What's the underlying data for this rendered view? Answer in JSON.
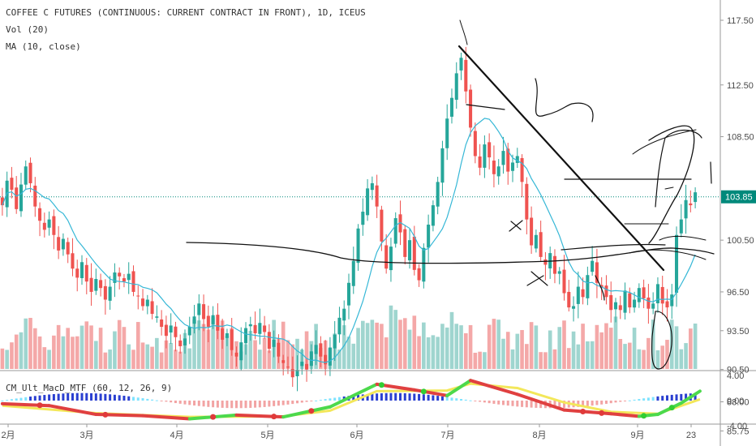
{
  "legend": {
    "symbol": "COFFEE C FUTURES (CONTINUOUS: CURRENT CONTRACT IN FRONT), 1D, ICEUS",
    "vol": "Vol (20)",
    "ma": "MA (10, close)",
    "macd": "CM_Ult_MacD_MTF (60, 12, 26, 9)"
  },
  "colors": {
    "up": "#26a69a",
    "down": "#ef5350",
    "vol_up": "#9fd5cf",
    "vol_down": "#f4a8a8",
    "ma": "#35b7d6",
    "price_line": "#00897b",
    "drawing": "#111111"
  },
  "chart_data": [
    {
      "type": "candlestick",
      "title": "COFFEE C FUTURES (CONTINUOUS: CURRENT CONTRACT IN FRONT), 1D, ICEUS",
      "y_ticks": [
        "117.50",
        "112.50",
        "108.50",
        "100.50",
        "96.50",
        "93.50",
        "90.50",
        "88.00",
        "85.75"
      ],
      "x_ticks": [
        "3月",
        "4月",
        "5月",
        "6月",
        "7月",
        "8月",
        "9月",
        "23"
      ],
      "first_tick_partial": "2月",
      "last_price": "103.85",
      "close_approx": [
        103.2,
        105.1,
        104.4,
        102.9,
        104.8,
        106.2,
        104.9,
        103.1,
        102.0,
        101.3,
        102.1,
        100.9,
        99.7,
        100.6,
        99.4,
        98.3,
        97.6,
        98.8,
        97.3,
        96.5,
        97.5,
        96.8,
        95.9,
        96.9,
        98.0,
        97.7,
        97.3,
        97.9,
        96.5,
        96.2,
        95.4,
        95.9,
        94.8,
        94.6,
        93.8,
        93.1,
        93.9,
        93.0,
        92.3,
        92.9,
        93.8,
        94.6,
        95.6,
        94.4,
        93.8,
        94.7,
        93.5,
        92.8,
        93.3,
        92.0,
        91.5,
        92.6,
        93.7,
        94.0,
        93.3,
        94.1,
        93.4,
        92.1,
        92.8,
        91.5,
        91.0,
        90.7,
        89.9,
        90.5,
        91.1,
        90.5,
        91.9,
        92.4,
        91.5,
        90.9,
        92.2,
        93.2,
        94.5,
        95.2,
        97.2,
        98.9,
        101.4,
        102.7,
        104.5,
        104.9,
        103.1,
        100.4,
        98.3,
        100.0,
        102.2,
        101.1,
        99.2,
        100.5,
        98.2,
        97.4,
        99.9,
        101.7,
        103.2,
        105.0,
        107.6,
        109.9,
        111.5,
        113.4,
        114.6,
        112.0,
        109.2,
        107.0,
        106.1,
        107.9,
        106.9,
        105.6,
        106.2,
        107.4,
        105.8,
        106.5,
        107.0,
        105.0,
        102.1,
        100.1,
        100.9,
        99.2,
        98.6,
        99.5,
        97.9,
        98.1,
        96.4,
        95.3,
        95.4,
        96.9,
        96.1,
        97.8,
        98.9,
        97.2,
        96.8,
        96.1,
        95.1,
        95.7,
        95.1,
        96.6,
        95.3,
        95.9,
        96.8,
        96.0,
        95.2,
        95.6,
        97.1,
        95.6,
        95.3,
        96.3,
        100.9,
        102.1,
        103.6,
        103.2,
        104.2
      ],
      "ma_period": 10,
      "volume_series": "Vol (20)"
    },
    {
      "type": "line",
      "title": "CM_Ult_MacD_MTF (60, 12, 26, 9)",
      "y_ticks": [
        "4.00",
        "0.00",
        "-4.00"
      ],
      "macd_points": [
        [
          0,
          -0.5
        ],
        [
          10,
          -0.8
        ],
        [
          20,
          -2.2
        ],
        [
          30,
          -2.4
        ],
        [
          40,
          -2.9
        ],
        [
          50,
          -2.3
        ],
        [
          60,
          -2.6
        ],
        [
          70,
          -1.0
        ],
        [
          80,
          2.6
        ],
        [
          88,
          1.7
        ],
        [
          95,
          0.8
        ],
        [
          100,
          3.2
        ],
        [
          110,
          1.0
        ],
        [
          120,
          -1.5
        ],
        [
          130,
          -2.1
        ],
        [
          136,
          -2.5
        ],
        [
          140,
          -2.2
        ],
        [
          145,
          -0.4
        ],
        [
          149,
          1.5
        ]
      ],
      "signal_points": [
        [
          0,
          -0.8
        ],
        [
          20,
          -2.0
        ],
        [
          40,
          -2.6
        ],
        [
          60,
          -2.5
        ],
        [
          70,
          -1.6
        ],
        [
          80,
          1.5
        ],
        [
          95,
          1.6
        ],
        [
          100,
          2.7
        ],
        [
          110,
          2.0
        ],
        [
          120,
          -0.3
        ],
        [
          130,
          -1.8
        ],
        [
          140,
          -2.1
        ],
        [
          149,
          0.2
        ]
      ],
      "cross_markers": [
        8,
        22,
        45,
        58,
        66,
        81,
        90,
        124,
        128,
        137,
        143
      ]
    }
  ]
}
